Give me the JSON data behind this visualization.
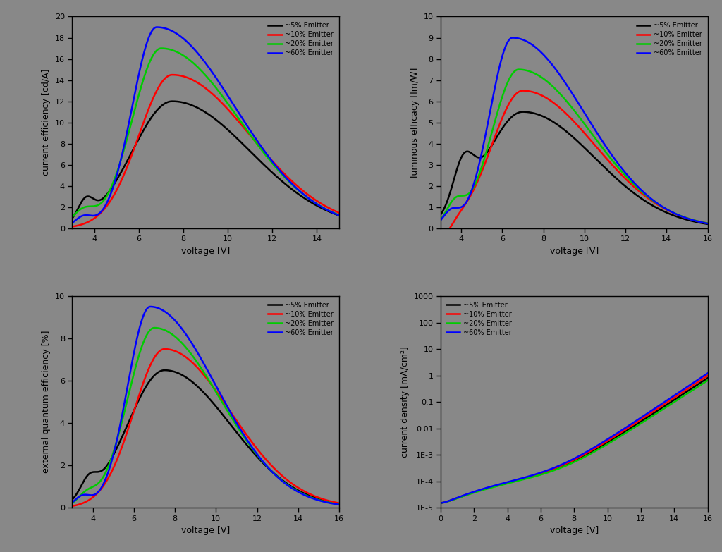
{
  "bg_color": "#888888",
  "axes_bg_color": "#888888",
  "line_colors": [
    "#000000",
    "#ff0000",
    "#00cc00",
    "#0000ff"
  ],
  "legend_label_prefixes": [
    "~5% ",
    "~10% ",
    "~20% ",
    "~60% "
  ],
  "xlabels": [
    "voltage [V]",
    "voltage [V]",
    "voltage [V]",
    "voltage [V]"
  ],
  "ylabels": [
    "current efficiency [cd/A]",
    "luminous efficacy [lm/W]",
    "external quantum efficiency [%]",
    "current density [mA/cm²]"
  ],
  "yticks_tl": [
    0,
    2,
    4,
    6,
    8,
    10,
    12,
    14,
    16,
    18,
    20
  ],
  "yticks_tr": [
    0,
    1,
    2,
    3,
    4,
    5,
    6,
    7,
    8,
    9,
    10
  ],
  "yticks_bl": [
    0,
    2,
    4,
    6,
    8,
    10
  ],
  "xticks_top_left": [
    4,
    6,
    8,
    10,
    12,
    14
  ],
  "xticks_others": [
    4,
    6,
    8,
    10,
    12,
    14,
    16
  ],
  "xticks_cd": [
    0,
    2,
    4,
    6,
    8,
    10,
    12,
    14,
    16
  ],
  "lw": 1.8,
  "tick_fontsize": 8,
  "label_fontsize": 9,
  "legend_fontsize": 7
}
